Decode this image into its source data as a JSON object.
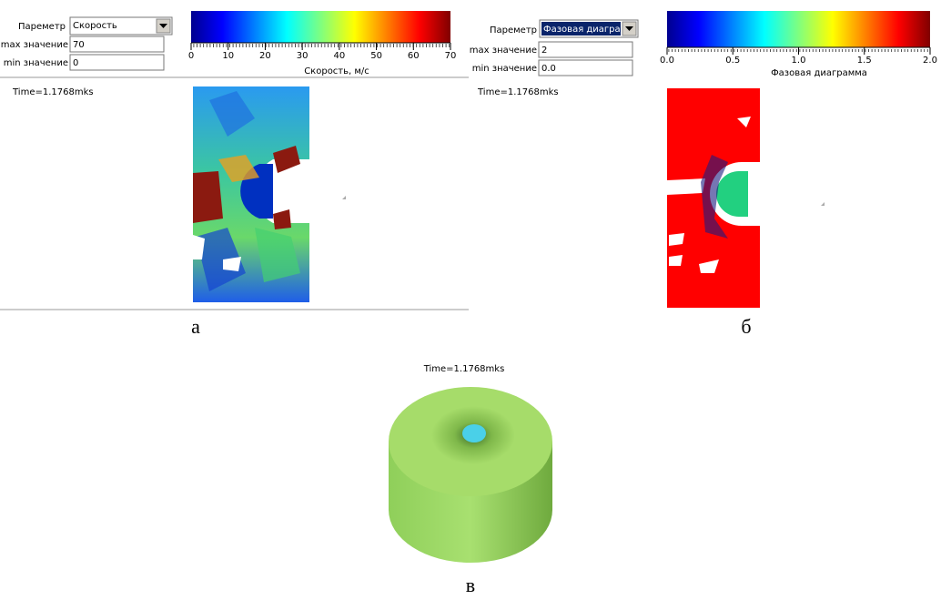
{
  "panels": [
    {
      "param_label": "Пареметр",
      "param_value": "Скорость",
      "max_label": "max значение",
      "max_value": "70",
      "min_label": "min значение",
      "min_value": "0",
      "colorbar": {
        "tick_labels": [
          "0",
          "10",
          "20",
          "30",
          "40",
          "50",
          "60",
          "70"
        ],
        "label": "Скорость, м/с"
      },
      "time": "Time=1.1768mks",
      "caption": "а"
    },
    {
      "param_label": "Пареметр",
      "param_value": "Фазовая диагра",
      "max_label": "max значение",
      "max_value": "2",
      "min_label": "min значение",
      "min_value": "0.0",
      "colorbar": {
        "tick_labels": [
          "0.0",
          "0.5",
          "1.0",
          "1.5",
          "2.0"
        ],
        "label": "Фазовая диаграмма"
      },
      "time": "Time=1.1768mks",
      "caption": "б"
    }
  ],
  "view3d": {
    "time": "Time=1.1768mks",
    "caption": "в"
  }
}
